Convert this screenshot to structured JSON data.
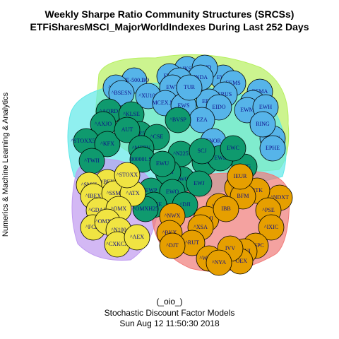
{
  "title_line1": "Weekly Sharpe Ratio Community Structures (SRCSs)",
  "title_line2": "ETFiSharesMSCI_MajorWorldIndexes During Last 252 Days",
  "y_label": "Numerics & Machine Learning & Analytics",
  "caption_line1": "(_oio_)",
  "caption_line2": "Stochastic Discount Factor Models",
  "caption_line3": "Sun Aug 12 11:50:30 2018",
  "colors": {
    "blue": "#56b4e9",
    "green": "#0f9a6e",
    "yellow": "#f0e442",
    "orange": "#e69f00",
    "hull_green": "#b6f060",
    "hull_cyan": "#5fe8e8",
    "hull_purple": "#c09af0",
    "hull_red": "#f07a78"
  },
  "communities": [
    {
      "color": "blue",
      "nodes": [
        "BSE-500.BO",
        "^JKSE",
        "EWZ",
        "EWY",
        "EWD",
        "INDA",
        "^SMIN",
        "^NSEI",
        "^BSESN",
        "EWT",
        "EEMS",
        "ERUS",
        "^XU100",
        "MCEX.ME",
        "EWS",
        "EPOL",
        "EEMA",
        "AAXJ",
        "EIDO",
        "^RUSB",
        "^GDH",
        "EWH",
        "EWM",
        "EZA",
        "FBKF",
        "EUO",
        "^ECH",
        "ENOR",
        "^XAU",
        "EPHE",
        "TUR",
        "MTEB",
        "^JNOY"
      ]
    },
    {
      "color": "green",
      "nodes": [
        "^AORD",
        "^KLSE",
        "^AXJO",
        "^NZ50",
        "KSE",
        "^STOXX50E",
        "^KFX",
        "AUT",
        "^CSE",
        "^TWII",
        "^STOXX",
        "^MERV",
        "000001.SS",
        "EWA",
        "^N225",
        "^BVSP",
        "EWQ",
        "EWI",
        "EWP",
        "EWU",
        "EWK",
        "EWL",
        "EWG",
        "EWN",
        "EWO",
        "SCJ",
        "EWC",
        "EUFN",
        "^DJI",
        "EWW",
        "EWJ",
        "^FTSE",
        "^GDAXI",
        "^OMXH25"
      ]
    },
    {
      "color": "yellow",
      "nodes": [
        "^BFX",
        "^SMSI",
        "^IBEX",
        "^SSMI",
        "^ATX",
        "^GDAXI",
        "^OMX",
        "^FCHI",
        "^OMXSPI",
        "^N100",
        "^CXKCX",
        "^AEX",
        "^STOXX"
      ]
    },
    {
      "color": "orange",
      "nodes": [
        "^NBI",
        "^NDXT",
        "BTK",
        "BFM",
        "IEUR",
        "^DRG",
        "^NWX",
        "^XMI",
        "^PSE",
        "^IXIC",
        "^BKX",
        "^XSA",
        "^RUT",
        "^DJT",
        "^GSPC",
        "^RUI",
        "^W5000",
        "^OEX",
        "IVV",
        "^NYA",
        "IBB",
        "EWN",
        "FXI"
      ]
    }
  ],
  "nodes": [
    {
      "id": "BSE-500.BO",
      "c": "blue"
    },
    {
      "id": "^JKSE",
      "c": "blue"
    },
    {
      "id": "EWZ",
      "c": "blue"
    },
    {
      "id": "EWY",
      "c": "blue"
    },
    {
      "id": "EWD",
      "c": "blue"
    },
    {
      "id": "INDA",
      "c": "blue"
    },
    {
      "id": "^SMIN",
      "c": "blue"
    },
    {
      "id": "^NSEI",
      "c": "blue"
    },
    {
      "id": "^BSESN",
      "c": "blue"
    },
    {
      "id": "EWT",
      "c": "blue"
    },
    {
      "id": "EEMS",
      "c": "blue"
    },
    {
      "id": "ERUS",
      "c": "blue"
    },
    {
      "id": "^XU100",
      "c": "blue"
    },
    {
      "id": "MCEX.ME",
      "c": "blue"
    },
    {
      "id": "EWS",
      "c": "blue"
    },
    {
      "id": "EPOL",
      "c": "blue"
    },
    {
      "id": "EEMA",
      "c": "blue"
    },
    {
      "id": "AAXJ",
      "c": "blue"
    },
    {
      "id": "EIDO",
      "c": "blue"
    },
    {
      "id": "EWM",
      "c": "blue"
    },
    {
      "id": "EWH",
      "c": "blue"
    },
    {
      "id": "EZA",
      "c": "blue"
    },
    {
      "id": "ENOR",
      "c": "blue"
    },
    {
      "id": "^XAU",
      "c": "blue"
    },
    {
      "id": "EPHE",
      "c": "blue"
    },
    {
      "id": "TUR",
      "c": "blue"
    },
    {
      "id": "RING",
      "c": "blue"
    },
    {
      "id": "^AORD",
      "c": "green"
    },
    {
      "id": "^KLSE",
      "c": "green"
    },
    {
      "id": "^AXJO",
      "c": "green"
    },
    {
      "id": "^NZ50",
      "c": "green"
    },
    {
      "id": "^STOXX50E",
      "c": "green"
    },
    {
      "id": "^KFX",
      "c": "green"
    },
    {
      "id": "AUT",
      "c": "green"
    },
    {
      "id": "^CSE",
      "c": "green"
    },
    {
      "id": "^TWII",
      "c": "green"
    },
    {
      "id": "^MERV",
      "c": "green"
    },
    {
      "id": "000001.SS",
      "c": "green"
    },
    {
      "id": "^N225",
      "c": "green"
    },
    {
      "id": "^BVSP",
      "c": "green"
    },
    {
      "id": "EWQ",
      "c": "green"
    },
    {
      "id": "EWI",
      "c": "green"
    },
    {
      "id": "EWP",
      "c": "green"
    },
    {
      "id": "EWU",
      "c": "green"
    },
    {
      "id": "EWK",
      "c": "green"
    },
    {
      "id": "EWL",
      "c": "green"
    },
    {
      "id": "EWG",
      "c": "green"
    },
    {
      "id": "EWO",
      "c": "green"
    },
    {
      "id": "SCJ",
      "c": "green"
    },
    {
      "id": "EWC",
      "c": "green"
    },
    {
      "id": "^FTSE",
      "c": "green"
    },
    {
      "id": "^OMXH25",
      "c": "green"
    },
    {
      "id": "^DJI",
      "c": "green"
    },
    {
      "id": "EWJ",
      "c": "green"
    },
    {
      "id": "^BFX",
      "c": "yellow"
    },
    {
      "id": "^SMSI",
      "c": "yellow"
    },
    {
      "id": "^IBEX",
      "c": "yellow"
    },
    {
      "id": "^SSMI",
      "c": "yellow"
    },
    {
      "id": "^ATX",
      "c": "yellow"
    },
    {
      "id": "^GDAXI",
      "c": "yellow"
    },
    {
      "id": "^OMX",
      "c": "yellow"
    },
    {
      "id": "^FCHI",
      "c": "yellow"
    },
    {
      "id": "^OMXSPI",
      "c": "yellow"
    },
    {
      "id": "^N100",
      "c": "yellow"
    },
    {
      "id": "^CXKCX",
      "c": "yellow"
    },
    {
      "id": "^AEX",
      "c": "yellow"
    },
    {
      "id": "^STOXX",
      "c": "yellow"
    },
    {
      "id": "^NBI",
      "c": "orange"
    },
    {
      "id": "^NDXT",
      "c": "orange"
    },
    {
      "id": "BTK",
      "c": "orange"
    },
    {
      "id": "BFM",
      "c": "orange"
    },
    {
      "id": "IEUR",
      "c": "orange"
    },
    {
      "id": "^DRG",
      "c": "orange"
    },
    {
      "id": "^NWX",
      "c": "orange"
    },
    {
      "id": "^XMI",
      "c": "orange"
    },
    {
      "id": "^PSE",
      "c": "orange"
    },
    {
      "id": "^IXIC",
      "c": "orange"
    },
    {
      "id": "^BKX",
      "c": "orange"
    },
    {
      "id": "^XSA",
      "c": "orange"
    },
    {
      "id": "^RUT",
      "c": "orange"
    },
    {
      "id": "^DJT",
      "c": "orange"
    },
    {
      "id": "^GSPC",
      "c": "orange"
    },
    {
      "id": "^RUI",
      "c": "orange"
    },
    {
      "id": "^W5000",
      "c": "orange"
    },
    {
      "id": "^OEX",
      "c": "orange"
    },
    {
      "id": "IVV",
      "c": "orange"
    },
    {
      "id": "^NYA",
      "c": "orange"
    },
    {
      "id": "IBB",
      "c": "orange"
    }
  ]
}
